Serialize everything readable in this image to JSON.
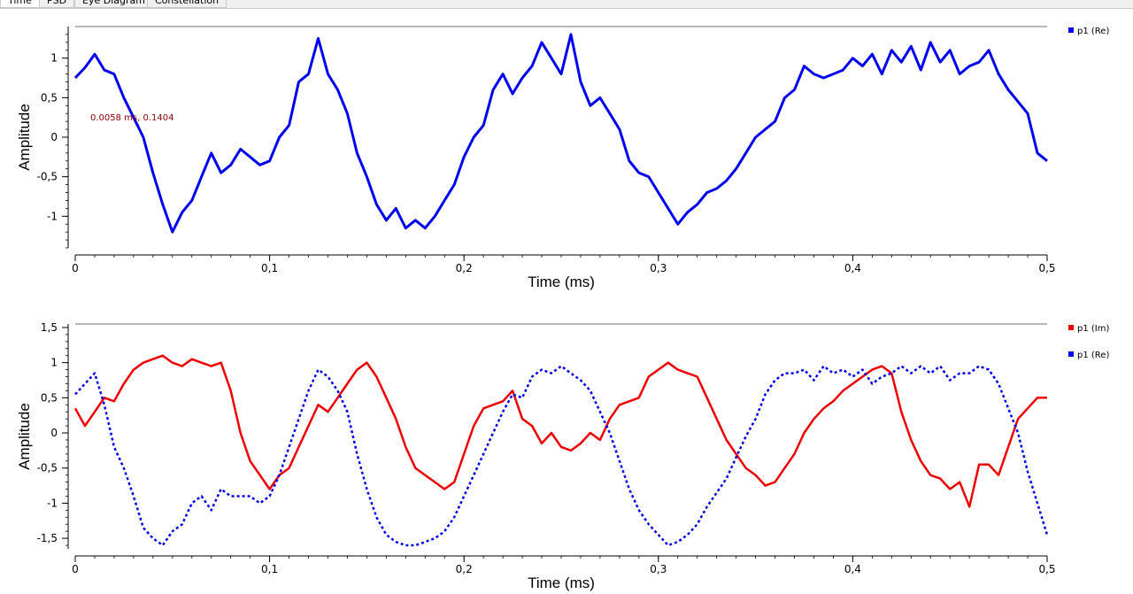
{
  "tabs": [
    {
      "label": "Time",
      "active": true
    },
    {
      "label": "PSD",
      "active": false
    },
    {
      "label": "Eye Diagram",
      "active": false
    },
    {
      "label": "Constellation",
      "active": false
    }
  ],
  "marker": {
    "label": "0.0058 ms, 0.1404"
  },
  "colors": {
    "re": "#0000ee",
    "im": "#ee0000",
    "axis": "#000000",
    "frame": "#a0a0a0"
  },
  "chart_data": [
    {
      "type": "line",
      "xlabel": "Time (ms)",
      "ylabel": "Amplitude",
      "xlim": [
        0,
        0.5
      ],
      "ylim": [
        -1.4,
        1.4
      ],
      "xticks": [
        "0",
        "0,1",
        "0,2",
        "0,3",
        "0,4",
        "0,5"
      ],
      "yticks": [
        "-1",
        "-0,5",
        "0",
        "0,5",
        "1"
      ],
      "legend_position": "top-right",
      "grid": false,
      "series": [
        {
          "name": "p1 (Re)",
          "color": "#0000ee",
          "x": [
            0,
            0.005,
            0.01,
            0.015,
            0.02,
            0.025,
            0.03,
            0.035,
            0.04,
            0.045,
            0.05,
            0.055,
            0.06,
            0.065,
            0.07,
            0.075,
            0.08,
            0.085,
            0.09,
            0.095,
            0.1,
            0.105,
            0.11,
            0.115,
            0.12,
            0.125,
            0.13,
            0.135,
            0.14,
            0.145,
            0.15,
            0.155,
            0.16,
            0.165,
            0.17,
            0.175,
            0.18,
            0.185,
            0.19,
            0.195,
            0.2,
            0.205,
            0.21,
            0.215,
            0.22,
            0.225,
            0.23,
            0.235,
            0.24,
            0.245,
            0.25,
            0.255,
            0.26,
            0.265,
            0.27,
            0.275,
            0.28,
            0.285,
            0.29,
            0.295,
            0.3,
            0.305,
            0.31,
            0.315,
            0.32,
            0.325,
            0.33,
            0.335,
            0.34,
            0.345,
            0.35,
            0.355,
            0.36,
            0.365,
            0.37,
            0.375,
            0.38,
            0.385,
            0.39,
            0.395,
            0.4,
            0.405,
            0.41,
            0.415,
            0.42,
            0.425,
            0.43,
            0.435,
            0.44,
            0.445,
            0.45,
            0.455,
            0.46,
            0.465,
            0.47,
            0.475,
            0.48,
            0.485,
            0.49,
            0.495,
            0.5
          ],
          "values": [
            0.75,
            0.88,
            1.05,
            0.85,
            0.8,
            0.5,
            0.25,
            0.0,
            -0.45,
            -0.85,
            -1.2,
            -0.95,
            -0.8,
            -0.5,
            -0.2,
            -0.45,
            -0.35,
            -0.15,
            -0.25,
            -0.35,
            -0.3,
            0.0,
            0.15,
            0.7,
            0.8,
            1.25,
            0.8,
            0.6,
            0.3,
            -0.2,
            -0.5,
            -0.85,
            -1.05,
            -0.9,
            -1.15,
            -1.05,
            -1.15,
            -1.0,
            -0.8,
            -0.6,
            -0.25,
            0.0,
            0.15,
            0.6,
            0.8,
            0.55,
            0.75,
            0.9,
            1.2,
            1.0,
            0.8,
            1.3,
            0.7,
            0.4,
            0.5,
            0.3,
            0.1,
            -0.3,
            -0.45,
            -0.5,
            -0.7,
            -0.9,
            -1.1,
            -0.95,
            -0.85,
            -0.7,
            -0.65,
            -0.55,
            -0.4,
            -0.2,
            0.0,
            0.1,
            0.2,
            0.5,
            0.6,
            0.9,
            0.8,
            0.75,
            0.8,
            0.85,
            1.0,
            0.9,
            1.05,
            0.8,
            1.1,
            0.95,
            1.15,
            0.85,
            1.2,
            0.95,
            1.1,
            0.8,
            0.9,
            0.95,
            1.1,
            0.8,
            0.6,
            0.45,
            0.3,
            -0.2,
            -0.3
          ]
        }
      ]
    },
    {
      "type": "line",
      "xlabel": "Time (ms)",
      "ylabel": "Amplitude",
      "xlim": [
        0,
        0.5
      ],
      "ylim": [
        -1.65,
        1.55
      ],
      "xticks": [
        "0",
        "0,1",
        "0,2",
        "0,3",
        "0,4",
        "0,5"
      ],
      "yticks": [
        "-1,5",
        "-1",
        "-0,5",
        "0",
        "0,5",
        "1",
        "1,5"
      ],
      "legend_position": "top-right",
      "grid": false,
      "series": [
        {
          "name": "p1 (Im)",
          "color": "#ee0000",
          "x": [
            0,
            0.005,
            0.01,
            0.015,
            0.02,
            0.025,
            0.03,
            0.035,
            0.04,
            0.045,
            0.05,
            0.055,
            0.06,
            0.065,
            0.07,
            0.075,
            0.08,
            0.085,
            0.09,
            0.095,
            0.1,
            0.105,
            0.11,
            0.115,
            0.12,
            0.125,
            0.13,
            0.135,
            0.14,
            0.145,
            0.15,
            0.155,
            0.16,
            0.165,
            0.17,
            0.175,
            0.18,
            0.185,
            0.19,
            0.195,
            0.2,
            0.205,
            0.21,
            0.215,
            0.22,
            0.225,
            0.23,
            0.235,
            0.24,
            0.245,
            0.25,
            0.255,
            0.26,
            0.265,
            0.27,
            0.275,
            0.28,
            0.285,
            0.29,
            0.295,
            0.3,
            0.305,
            0.31,
            0.315,
            0.32,
            0.325,
            0.33,
            0.335,
            0.34,
            0.345,
            0.35,
            0.355,
            0.36,
            0.365,
            0.37,
            0.375,
            0.38,
            0.385,
            0.39,
            0.395,
            0.4,
            0.405,
            0.41,
            0.415,
            0.42,
            0.425,
            0.43,
            0.435,
            0.44,
            0.445,
            0.45,
            0.455,
            0.46,
            0.465,
            0.47,
            0.475,
            0.48,
            0.485,
            0.49,
            0.495,
            0.5
          ],
          "values": [
            0.35,
            0.1,
            0.3,
            0.5,
            0.45,
            0.7,
            0.9,
            1.0,
            1.05,
            1.1,
            1.0,
            0.95,
            1.05,
            1.0,
            0.95,
            1.0,
            0.6,
            0.0,
            -0.4,
            -0.6,
            -0.8,
            -0.6,
            -0.5,
            -0.2,
            0.1,
            0.4,
            0.3,
            0.5,
            0.7,
            0.9,
            1.0,
            0.8,
            0.5,
            0.2,
            -0.2,
            -0.5,
            -0.6,
            -0.7,
            -0.8,
            -0.7,
            -0.3,
            0.1,
            0.35,
            0.4,
            0.45,
            0.6,
            0.2,
            0.1,
            -0.15,
            0.0,
            -0.2,
            -0.25,
            -0.15,
            0.0,
            -0.1,
            0.2,
            0.4,
            0.45,
            0.5,
            0.8,
            0.9,
            1.0,
            0.9,
            0.85,
            0.8,
            0.5,
            0.2,
            -0.1,
            -0.3,
            -0.5,
            -0.6,
            -0.75,
            -0.7,
            -0.5,
            -0.3,
            0.0,
            0.2,
            0.35,
            0.45,
            0.6,
            0.7,
            0.8,
            0.9,
            0.95,
            0.85,
            0.3,
            -0.1,
            -0.4,
            -0.6,
            -0.65,
            -0.8,
            -0.7,
            -1.05,
            -0.45,
            -0.45,
            -0.6,
            -0.2,
            0.2,
            0.35,
            0.5,
            0.5
          ]
        },
        {
          "name": "p1 (Re)",
          "color": "#0000ee",
          "x": [
            0,
            0.005,
            0.01,
            0.015,
            0.02,
            0.025,
            0.03,
            0.035,
            0.04,
            0.045,
            0.05,
            0.055,
            0.06,
            0.065,
            0.07,
            0.075,
            0.08,
            0.085,
            0.09,
            0.095,
            0.1,
            0.105,
            0.11,
            0.115,
            0.12,
            0.125,
            0.13,
            0.135,
            0.14,
            0.145,
            0.15,
            0.155,
            0.16,
            0.165,
            0.17,
            0.175,
            0.18,
            0.185,
            0.19,
            0.195,
            0.2,
            0.205,
            0.21,
            0.215,
            0.22,
            0.225,
            0.23,
            0.235,
            0.24,
            0.245,
            0.25,
            0.255,
            0.26,
            0.265,
            0.27,
            0.275,
            0.28,
            0.285,
            0.29,
            0.295,
            0.3,
            0.305,
            0.31,
            0.315,
            0.32,
            0.325,
            0.33,
            0.335,
            0.34,
            0.345,
            0.35,
            0.355,
            0.36,
            0.365,
            0.37,
            0.375,
            0.38,
            0.385,
            0.39,
            0.395,
            0.4,
            0.405,
            0.41,
            0.415,
            0.42,
            0.425,
            0.43,
            0.435,
            0.44,
            0.445,
            0.45,
            0.455,
            0.46,
            0.465,
            0.47,
            0.475,
            0.48,
            0.485,
            0.49,
            0.495,
            0.5
          ],
          "values": [
            0.55,
            0.7,
            0.85,
            0.4,
            -0.2,
            -0.5,
            -0.9,
            -1.35,
            -1.5,
            -1.6,
            -1.4,
            -1.3,
            -1.0,
            -0.9,
            -1.1,
            -0.8,
            -0.9,
            -0.9,
            -0.9,
            -1.0,
            -0.9,
            -0.6,
            -0.2,
            0.2,
            0.6,
            0.9,
            0.8,
            0.6,
            0.3,
            -0.3,
            -0.8,
            -1.2,
            -1.45,
            -1.55,
            -1.6,
            -1.6,
            -1.55,
            -1.5,
            -1.4,
            -1.2,
            -0.9,
            -0.6,
            -0.3,
            0.0,
            0.3,
            0.55,
            0.5,
            0.8,
            0.9,
            0.85,
            0.95,
            0.85,
            0.75,
            0.6,
            0.3,
            0.0,
            -0.4,
            -0.8,
            -1.1,
            -1.3,
            -1.45,
            -1.6,
            -1.55,
            -1.45,
            -1.3,
            -1.05,
            -0.85,
            -0.65,
            -0.35,
            -0.05,
            0.2,
            0.55,
            0.75,
            0.85,
            0.85,
            0.9,
            0.75,
            0.95,
            0.85,
            0.9,
            0.8,
            0.9,
            0.7,
            0.8,
            0.85,
            0.95,
            0.85,
            0.95,
            0.85,
            0.95,
            0.75,
            0.85,
            0.85,
            0.95,
            0.9,
            0.7,
            0.35,
            0.0,
            -0.55,
            -1.0,
            -1.45
          ]
        }
      ]
    }
  ]
}
